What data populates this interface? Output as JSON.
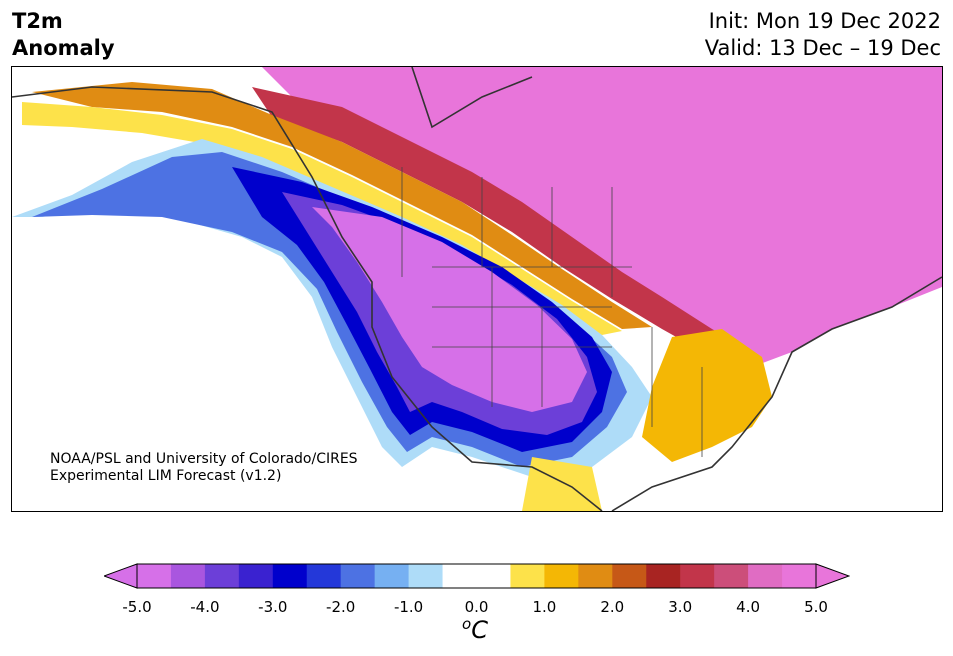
{
  "title": {
    "variable_line1": "T2m",
    "variable_line2": "Anomaly",
    "init": "Init: Mon 19 Dec 2022",
    "valid": "Valid: 13 Dec – 19 Dec"
  },
  "credit": {
    "line1": "NOAA/PSL and University of Colorado/CIRES",
    "line2": "Experimental LIM Forecast (v1.2)"
  },
  "colorbar": {
    "tick_labels": [
      "-5.0",
      "-4.0",
      "-3.0",
      "-2.0",
      "-1.0",
      "0.0",
      "1.0",
      "2.0",
      "3.0",
      "4.0",
      "5.0"
    ],
    "tick_values": [
      -5,
      -4,
      -3,
      -2,
      -1,
      0,
      1,
      2,
      3,
      4,
      5
    ],
    "colors": [
      "#d670e8",
      "#a956df",
      "#6c3fd8",
      "#3a22d0",
      "#0000cc",
      "#2438d9",
      "#4d72e3",
      "#76b0f2",
      "#aedcf8",
      "#ffffff",
      "#ffffff",
      "#fde24a",
      "#f4b705",
      "#e08c13",
      "#c65817",
      "#a82422",
      "#c2354a",
      "#cc4e7a",
      "#e06cc3",
      "#e875da"
    ],
    "unit_base": "C",
    "unit_super": "o"
  },
  "map": {
    "projection": "Lambert conformal, North America",
    "colors": {
      "land_outline": "#333333",
      "ocean": "#ffffff",
      "warm_extreme": "#e875da",
      "cold_extreme": "#d670e8",
      "deep_blue": "#0000cc"
    }
  }
}
